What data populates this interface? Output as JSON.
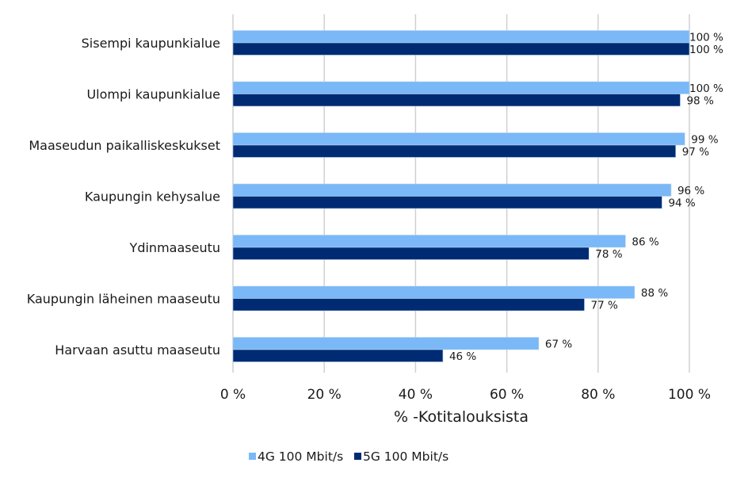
{
  "chart_data": {
    "type": "bar",
    "orientation": "horizontal",
    "categories": [
      "Sisempi kaupunkialue",
      "Ulompi kaupunkialue",
      "Maaseudun paikalliskeskukset",
      "Kaupungin kehysalue",
      "Ydinmaaseutu",
      "Kaupungin läheinen maaseutu",
      "Harvaan asuttu maaseutu"
    ],
    "series": [
      {
        "name": "4G 100 Mbit/s",
        "color": "#7ab8f7",
        "values": [
          100,
          100,
          99,
          96,
          86,
          88,
          67
        ],
        "labels": [
          "100 %",
          "100 %",
          "99 %",
          "96 %",
          "86 %",
          "88 %",
          "67 %"
        ]
      },
      {
        "name": "5G 100 Mbit/s",
        "color": "#002b73",
        "values": [
          100,
          98,
          97,
          94,
          78,
          77,
          46
        ],
        "labels": [
          "100 %",
          "98 %",
          "97 %",
          "94 %",
          "78 %",
          "77 %",
          "46 %"
        ]
      }
    ],
    "xlabel": "% -Kotitalouksista",
    "xlim": [
      0,
      100
    ],
    "xticks": [
      0,
      20,
      40,
      60,
      80,
      100
    ],
    "xtick_labels": [
      "0 %",
      "20 %",
      "40 %",
      "60 %",
      "80 %",
      "100 %"
    ],
    "grid": "vertical",
    "legend": "bottom"
  }
}
